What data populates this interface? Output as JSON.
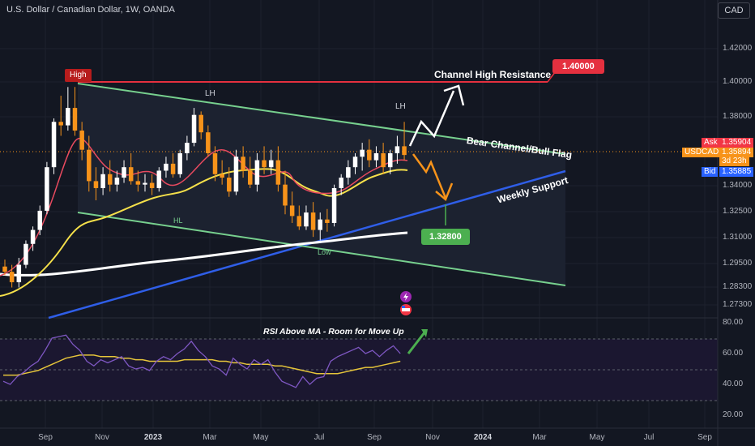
{
  "header": {
    "title": "U.S. Dollar / Canadian Dollar, 1W, OANDA",
    "currency_button": "CAD"
  },
  "price_axis": {
    "ticks": [
      "1.42000",
      "1.40000",
      "1.38000",
      "1.34000",
      "1.32500",
      "1.31000",
      "1.29500",
      "1.28300",
      "1.27300"
    ],
    "ask_label": "Ask",
    "ask_value": "1.35904",
    "symbol": "USDCAD",
    "last_value": "1.35894",
    "countdown": "3d 23h",
    "bid_label": "Bid",
    "bid_value": "1.35885"
  },
  "rsi_axis": {
    "ticks": [
      "80.00",
      "60.00",
      "40.00",
      "20.00"
    ]
  },
  "time_axis": {
    "ticks": [
      "Sep",
      "Nov",
      "2023",
      "Mar",
      "May",
      "Jul",
      "Sep",
      "Nov",
      "2024",
      "Mar",
      "May",
      "Jul",
      "Sep"
    ]
  },
  "annotations": {
    "high": "High",
    "lh_left": "LH",
    "lh_right": "LH",
    "hl": "HL",
    "low": "Low",
    "channel_resistance": "Channel High Resistance",
    "resistance_price": "1.40000",
    "bear_channel": "Bear Channel/Bull Flag",
    "weekly_support": "Weekly Support",
    "support_price": "1.32800",
    "rsi_note": "RSI Above MA - Room for Move Up"
  },
  "colors": {
    "background": "#131722",
    "bull": "#ffffff",
    "bear": "#f7931a",
    "channel": "#77d08e",
    "support": "#2f5ee8",
    "resistance": "#e5303f",
    "ma_fast": "#e84a5f",
    "ma_mid": "#f5e04a",
    "ma_slow": "#ffffff",
    "rsi": "#7e57c2",
    "rsi_ma": "#e6c53a",
    "green_tag": "#4caf50",
    "ask": "#f23645",
    "bid": "#2962ff"
  },
  "icons": [
    "lightning-icon",
    "us-flag-icon"
  ],
  "chart_data": {
    "type": "candlestick",
    "symbol": "USDCAD",
    "interval": "1W",
    "ylim": [
      1.268,
      1.43
    ],
    "rsi_ylim": [
      20,
      80
    ],
    "candles": [
      [
        1.295,
        1.299,
        1.29,
        1.292
      ],
      [
        1.292,
        1.296,
        1.283,
        1.286
      ],
      [
        1.286,
        1.3,
        1.283,
        1.296
      ],
      [
        1.296,
        1.31,
        1.294,
        1.308
      ],
      [
        1.308,
        1.318,
        1.304,
        1.316
      ],
      [
        1.316,
        1.33,
        1.313,
        1.327
      ],
      [
        1.327,
        1.355,
        1.325,
        1.352
      ],
      [
        1.352,
        1.38,
        1.348,
        1.378
      ],
      [
        1.378,
        1.393,
        1.37,
        1.376
      ],
      [
        1.376,
        1.398,
        1.373,
        1.386
      ],
      [
        1.386,
        1.398,
        1.37,
        1.373
      ],
      [
        1.373,
        1.378,
        1.356,
        1.362
      ],
      [
        1.362,
        1.37,
        1.338,
        1.344
      ],
      [
        1.344,
        1.352,
        1.333,
        1.34
      ],
      [
        1.34,
        1.352,
        1.336,
        1.348
      ],
      [
        1.348,
        1.356,
        1.338,
        1.342
      ],
      [
        1.342,
        1.35,
        1.338,
        1.346
      ],
      [
        1.346,
        1.356,
        1.343,
        1.352
      ],
      [
        1.352,
        1.36,
        1.342,
        1.344
      ],
      [
        1.344,
        1.35,
        1.338,
        1.342
      ],
      [
        1.342,
        1.348,
        1.338,
        1.343
      ],
      [
        1.343,
        1.348,
        1.336,
        1.34
      ],
      [
        1.34,
        1.352,
        1.338,
        1.35
      ],
      [
        1.35,
        1.358,
        1.346,
        1.354
      ],
      [
        1.354,
        1.36,
        1.346,
        1.348
      ],
      [
        1.348,
        1.362,
        1.346,
        1.36
      ],
      [
        1.36,
        1.37,
        1.356,
        1.366
      ],
      [
        1.366,
        1.386,
        1.364,
        1.382
      ],
      [
        1.382,
        1.384,
        1.368,
        1.372
      ],
      [
        1.372,
        1.376,
        1.358,
        1.36
      ],
      [
        1.36,
        1.364,
        1.344,
        1.348
      ],
      [
        1.348,
        1.356,
        1.342,
        1.346
      ],
      [
        1.346,
        1.352,
        1.335,
        1.338
      ],
      [
        1.338,
        1.362,
        1.336,
        1.358
      ],
      [
        1.358,
        1.364,
        1.346,
        1.35
      ],
      [
        1.35,
        1.358,
        1.34,
        1.342
      ],
      [
        1.342,
        1.36,
        1.338,
        1.356
      ],
      [
        1.356,
        1.364,
        1.348,
        1.352
      ],
      [
        1.352,
        1.362,
        1.348,
        1.356
      ],
      [
        1.356,
        1.364,
        1.338,
        1.342
      ],
      [
        1.342,
        1.35,
        1.325,
        1.33
      ],
      [
        1.33,
        1.338,
        1.32,
        1.324
      ],
      [
        1.324,
        1.33,
        1.316,
        1.318
      ],
      [
        1.318,
        1.33,
        1.316,
        1.326
      ],
      [
        1.326,
        1.332,
        1.312,
        1.316
      ],
      [
        1.316,
        1.326,
        1.31,
        1.322
      ],
      [
        1.322,
        1.328,
        1.315,
        1.32
      ],
      [
        1.32,
        1.342,
        1.318,
        1.34
      ],
      [
        1.34,
        1.348,
        1.336,
        1.346
      ],
      [
        1.346,
        1.356,
        1.342,
        1.352
      ],
      [
        1.352,
        1.36,
        1.348,
        1.358
      ],
      [
        1.358,
        1.366,
        1.35,
        1.362
      ],
      [
        1.362,
        1.368,
        1.352,
        1.356
      ],
      [
        1.356,
        1.364,
        1.352,
        1.36
      ],
      [
        1.36,
        1.366,
        1.348,
        1.352
      ],
      [
        1.352,
        1.362,
        1.348,
        1.36
      ],
      [
        1.36,
        1.37,
        1.354,
        1.364
      ],
      [
        1.364,
        1.378,
        1.356,
        1.359
      ]
    ],
    "rsi": [
      42,
      40,
      45,
      48,
      52,
      55,
      62,
      70,
      71,
      72,
      66,
      62,
      55,
      52,
      56,
      54,
      56,
      58,
      52,
      50,
      51,
      49,
      55,
      58,
      56,
      60,
      63,
      68,
      62,
      58,
      52,
      50,
      46,
      57,
      53,
      50,
      56,
      53,
      56,
      48,
      42,
      40,
      38,
      45,
      40,
      44,
      45,
      55,
      58,
      60,
      62,
      64,
      60,
      62,
      58,
      62,
      65,
      60
    ],
    "rsi_ma": [
      46,
      46,
      46,
      47,
      48,
      49,
      51,
      53,
      55,
      57,
      58,
      59,
      59,
      59,
      58,
      58,
      58,
      57,
      57,
      56,
      56,
      55,
      55,
      55,
      55,
      55,
      56,
      56,
      56,
      56,
      56,
      55,
      55,
      54,
      54,
      53,
      53,
      53,
      53,
      52,
      52,
      51,
      50,
      49,
      48,
      47,
      47,
      47,
      47,
      48,
      49,
      50,
      51,
      51,
      52,
      53,
      54,
      55
    ]
  }
}
